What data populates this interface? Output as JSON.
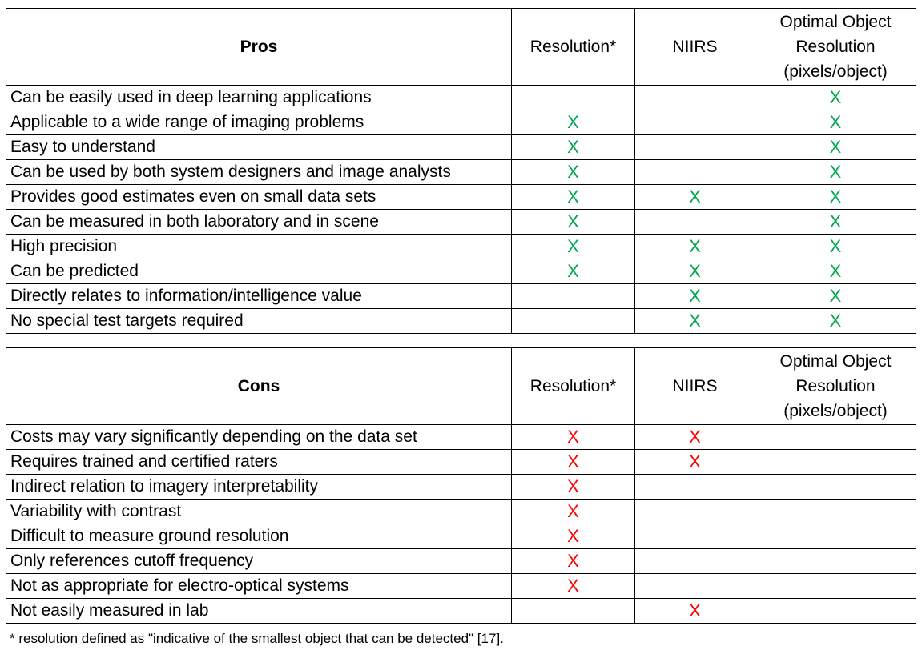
{
  "pros_table": {
    "headers": [
      "Pros",
      "Resolution*",
      "NIIRS",
      "Optimal Object Resolution (pixels/object)"
    ],
    "rows": [
      {
        "label": "Can be easily used in deep learning applications",
        "marks": [
          "",
          "",
          "X"
        ]
      },
      {
        "label": "Applicable to a wide range of imaging problems",
        "marks": [
          "X",
          "",
          "X"
        ]
      },
      {
        "label": "Easy to understand",
        "marks": [
          "X",
          "",
          "X"
        ]
      },
      {
        "label": "Can be used by both system designers and image analysts",
        "marks": [
          "X",
          "",
          "X"
        ]
      },
      {
        "label": "Provides good estimates even on small data sets",
        "marks": [
          "X",
          "X",
          "X"
        ]
      },
      {
        "label": "Can be measured in both laboratory and in scene",
        "marks": [
          "X",
          "",
          "X"
        ]
      },
      {
        "label": "High precision",
        "marks": [
          "X",
          "X",
          "X"
        ]
      },
      {
        "label": "Can be predicted",
        "marks": [
          "X",
          "X",
          "X"
        ]
      },
      {
        "label": "Directly relates to information/intelligence value",
        "marks": [
          "",
          "X",
          "X"
        ]
      },
      {
        "label": "No special test targets required",
        "marks": [
          "",
          "X",
          "X"
        ]
      }
    ]
  },
  "cons_table": {
    "headers": [
      "Cons",
      "Resolution*",
      "NIIRS",
      "Optimal Object Resolution (pixels/object)"
    ],
    "rows": [
      {
        "label": "Costs may vary significantly depending on the data set",
        "marks": [
          "X",
          "X",
          ""
        ]
      },
      {
        "label": "Requires trained and certified raters",
        "marks": [
          "X",
          "X",
          ""
        ]
      },
      {
        "label": "Indirect relation to imagery interpretability",
        "marks": [
          "X",
          "",
          ""
        ]
      },
      {
        "label": "Variability with contrast",
        "marks": [
          "X",
          "",
          ""
        ]
      },
      {
        "label": "Difficult to measure ground resolution",
        "marks": [
          "X",
          "",
          ""
        ]
      },
      {
        "label": "Only references cutoff frequency",
        "marks": [
          "X",
          "",
          ""
        ]
      },
      {
        "label": "Not as appropriate for electro-optical systems",
        "marks": [
          "X",
          "",
          ""
        ]
      },
      {
        "label": "Not easily measured in lab",
        "marks": [
          "",
          "X",
          ""
        ]
      }
    ]
  },
  "colors": {
    "pro_mark": "#00a650",
    "con_mark": "#ff0000"
  },
  "footnote": "* resolution defined as \"indicative of the smallest object that can be detected\" [17]."
}
